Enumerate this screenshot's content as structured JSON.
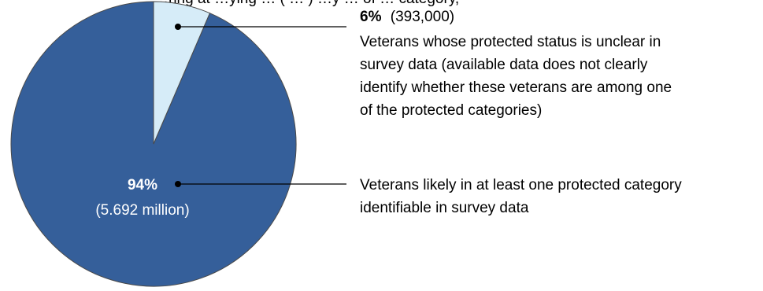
{
  "chart_data": {
    "type": "pie",
    "title_fragment": "…ring at …ying … ( … ) …y … of … category,",
    "slices": [
      {
        "key": "unclear",
        "percent_label": "6%",
        "count_label": "(393,000)",
        "value": 393000,
        "share": 0.06,
        "color": "#d6ecf8",
        "description": [
          "Veterans whose protected status is unclear in",
          "survey data (available data does not clearly",
          "identify whether these veterans are among one",
          "of the protected categories)"
        ]
      },
      {
        "key": "likely",
        "percent_label": "94%",
        "count_label": "(5.692 million)",
        "value": 5692000,
        "share": 0.94,
        "color": "#355f9a",
        "description": [
          "Veterans likely in at least one protected category",
          "identifiable in survey data"
        ]
      }
    ],
    "start_angle": "top, clockwise",
    "legend": "none (callout labels)"
  }
}
